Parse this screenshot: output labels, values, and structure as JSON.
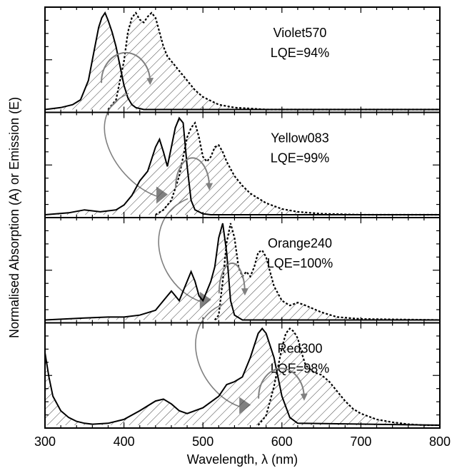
{
  "chart_data": {
    "type": "line",
    "xlabel": "Wavelength, λ (nm)",
    "ylabel": "Normalised Absorption (A) or Emission (E)",
    "xlim": [
      300,
      800
    ],
    "x_ticks": [
      "300",
      "400",
      "500",
      "600",
      "700",
      "800"
    ],
    "grid": false,
    "legend": "none",
    "series_style": {
      "absorption": "solid",
      "emission": "dotted, hatched fill"
    },
    "arrow_color": "#808080",
    "hatch_color": "#444444",
    "panels": [
      {
        "name": "Violet570",
        "lqe": "LQE=94%",
        "absorption": {
          "x": [
            300,
            320,
            335,
            345,
            355,
            362,
            368,
            372,
            376,
            380,
            385,
            390,
            395,
            400,
            405,
            410,
            415,
            420,
            425,
            800
          ],
          "y": [
            0.0,
            0.02,
            0.05,
            0.1,
            0.3,
            0.6,
            0.85,
            0.95,
            1.0,
            0.92,
            0.8,
            0.65,
            0.45,
            0.25,
            0.12,
            0.05,
            0.02,
            0.01,
            0.0,
            0.0
          ]
        },
        "emission": {
          "x": [
            380,
            390,
            400,
            405,
            410,
            415,
            420,
            425,
            430,
            435,
            440,
            445,
            450,
            455,
            460,
            470,
            480,
            490,
            500,
            520,
            540,
            560,
            580,
            600,
            650,
            800
          ],
          "y": [
            0.0,
            0.1,
            0.5,
            0.8,
            0.95,
            1.0,
            0.93,
            0.9,
            0.96,
            1.0,
            0.95,
            0.8,
            0.65,
            0.55,
            0.5,
            0.4,
            0.3,
            0.2,
            0.13,
            0.05,
            0.02,
            0.01,
            0.0,
            0.0,
            0.0,
            0.0
          ]
        }
      },
      {
        "name": "Yellow083",
        "lqe": "LQE=99%",
        "absorption": {
          "x": [
            300,
            330,
            350,
            370,
            390,
            400,
            410,
            420,
            430,
            440,
            445,
            450,
            455,
            460,
            465,
            470,
            475,
            480,
            485,
            490,
            500,
            510,
            800
          ],
          "y": [
            0.0,
            0.02,
            0.05,
            0.03,
            0.05,
            0.1,
            0.2,
            0.35,
            0.45,
            0.7,
            0.78,
            0.65,
            0.5,
            0.7,
            0.9,
            1.0,
            0.95,
            0.5,
            0.15,
            0.05,
            0.01,
            0.0,
            0.0
          ]
        },
        "emission": {
          "x": [
            440,
            450,
            460,
            470,
            475,
            480,
            485,
            490,
            495,
            500,
            505,
            510,
            515,
            520,
            525,
            530,
            540,
            550,
            560,
            580,
            600,
            620,
            650,
            700,
            800
          ],
          "y": [
            0.0,
            0.05,
            0.15,
            0.4,
            0.6,
            0.8,
            0.9,
            0.95,
            0.8,
            0.6,
            0.55,
            0.6,
            0.7,
            0.72,
            0.65,
            0.55,
            0.4,
            0.3,
            0.22,
            0.12,
            0.06,
            0.03,
            0.01,
            0.0,
            0.0
          ]
        }
      },
      {
        "name": "Orange240",
        "lqe": "LQE=100%",
        "absorption": {
          "x": [
            300,
            350,
            380,
            400,
            420,
            440,
            450,
            460,
            465,
            470,
            480,
            485,
            490,
            495,
            500,
            510,
            515,
            520,
            525,
            530,
            535,
            540,
            550,
            800
          ],
          "y": [
            0.0,
            0.02,
            0.03,
            0.03,
            0.05,
            0.1,
            0.2,
            0.3,
            0.25,
            0.2,
            0.4,
            0.5,
            0.4,
            0.25,
            0.2,
            0.4,
            0.55,
            0.85,
            1.0,
            0.7,
            0.2,
            0.05,
            0.0,
            0.0
          ]
        },
        "emission": {
          "x": [
            515,
            520,
            525,
            530,
            535,
            540,
            545,
            550,
            555,
            560,
            565,
            570,
            575,
            580,
            585,
            590,
            600,
            610,
            620,
            630,
            650,
            670,
            700,
            800
          ],
          "y": [
            0.0,
            0.05,
            0.4,
            0.8,
            1.0,
            0.85,
            0.55,
            0.45,
            0.5,
            0.45,
            0.55,
            0.7,
            0.72,
            0.65,
            0.5,
            0.35,
            0.2,
            0.15,
            0.18,
            0.15,
            0.08,
            0.03,
            0.01,
            0.0
          ]
        }
      },
      {
        "name": "Red300",
        "lqe": "LQE=98%",
        "absorption": {
          "x": [
            300,
            305,
            310,
            320,
            330,
            340,
            350,
            360,
            380,
            400,
            420,
            440,
            450,
            460,
            470,
            480,
            500,
            520,
            530,
            540,
            550,
            560,
            570,
            575,
            580,
            590,
            600,
            610,
            620,
            800
          ],
          "y": [
            0.75,
            0.5,
            0.3,
            0.15,
            0.08,
            0.04,
            0.02,
            0.01,
            0.02,
            0.06,
            0.15,
            0.25,
            0.27,
            0.22,
            0.15,
            0.12,
            0.18,
            0.3,
            0.42,
            0.45,
            0.5,
            0.7,
            0.95,
            1.0,
            0.95,
            0.7,
            0.3,
            0.08,
            0.02,
            0.0
          ]
        },
        "emission": {
          "x": [
            570,
            580,
            590,
            600,
            605,
            610,
            615,
            620,
            625,
            630,
            640,
            650,
            660,
            670,
            680,
            690,
            700,
            720,
            740,
            760,
            780,
            800
          ],
          "y": [
            0.0,
            0.1,
            0.4,
            0.8,
            0.95,
            1.0,
            0.97,
            0.9,
            0.75,
            0.62,
            0.55,
            0.52,
            0.45,
            0.35,
            0.25,
            0.17,
            0.12,
            0.06,
            0.03,
            0.01,
            0.0,
            0.0
          ]
        }
      }
    ]
  }
}
